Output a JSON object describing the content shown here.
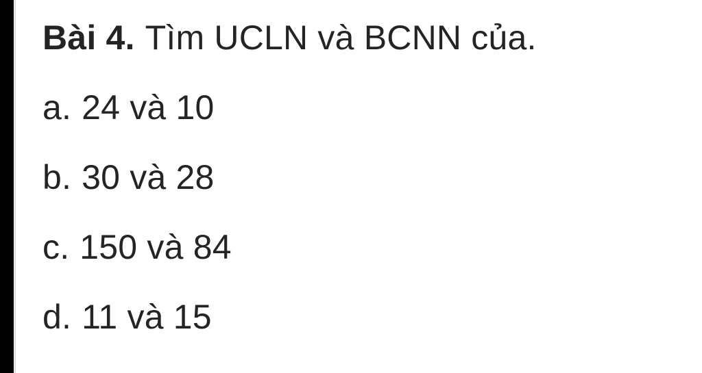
{
  "page": {
    "background": "#ffffff",
    "text_color": "#242424",
    "left_bar_color": "#000000"
  },
  "problem": {
    "label": "Bài 4.",
    "title": "Tìm UCLN và BCNN của.",
    "items": [
      {
        "letter": "a.",
        "text": "24 và 10"
      },
      {
        "letter": "b.",
        "text": "30 và 28"
      },
      {
        "letter": "c.",
        "text": "150 và 84"
      },
      {
        "letter": "d.",
        "text": "11 và 15"
      }
    ]
  }
}
